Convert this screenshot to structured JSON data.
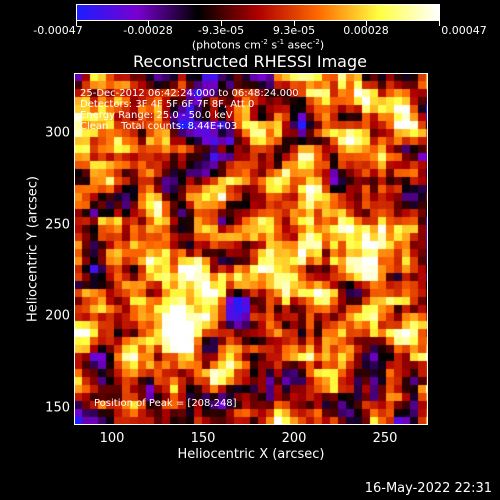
{
  "colorbar": {
    "tick_labels": [
      "-0.00047",
      "-0.00028",
      "-9.3e-05",
      "9.3e-05",
      "0.00028",
      "0.00047"
    ],
    "units_main": "(photons cm",
    "units_exp1": "-2",
    "units_mid1": " s",
    "units_exp2": "-1",
    "units_mid2": " asec",
    "units_exp3": "-2",
    "units_end": ")",
    "colormap": [
      "#1e1eff",
      "#7a00d0",
      "#000000",
      "#b00000",
      "#ff6a00",
      "#ffff40",
      "#ffffff"
    ]
  },
  "plot": {
    "title": "Reconstructed RHESSI Image",
    "annotation_lines": [
      "25-Dec-2012 06:42:24.000 to 06:48:24.000",
      "Detectors: 3F 4F 5F 6F 7F 8F, Att 0",
      "Energy Range: 25.0 - 50.0 keV",
      "Clean    Total counts: 8.44E+03"
    ],
    "peak_label": "Position of Peak = [208,248]",
    "xlabel": "Heliocentric X (arcsec)",
    "ylabel": "Heliocentric Y (arcsec)",
    "xticks": [
      "100",
      "150",
      "200",
      "250"
    ],
    "yticks": [
      "300",
      "250",
      "200",
      "150"
    ]
  },
  "chart_data": {
    "type": "heatmap",
    "xlim": [
      80,
      270
    ],
    "ylim": [
      140,
      330
    ],
    "xticks": [
      100,
      150,
      200,
      250
    ],
    "yticks": [
      150,
      200,
      250,
      300
    ],
    "peak": [
      208,
      248
    ],
    "clim": [
      -0.00047,
      0.00047
    ]
  },
  "footer": {
    "timestamp": "16-May-2022 22:31"
  }
}
